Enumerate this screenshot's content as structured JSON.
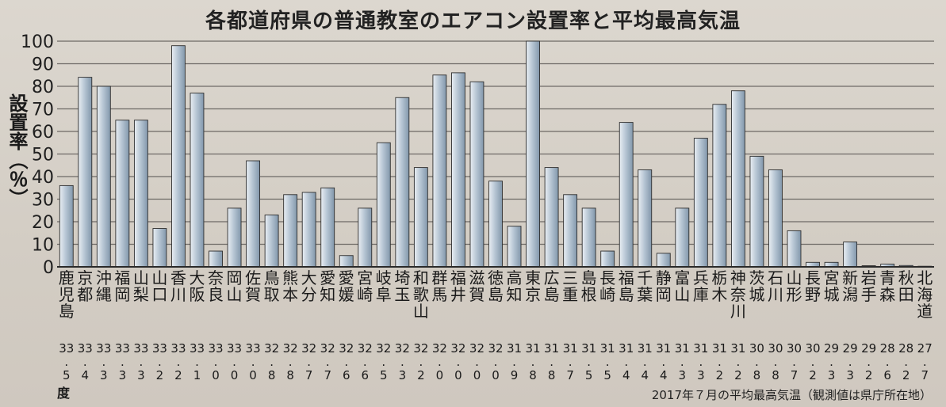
{
  "chart_data": {
    "type": "bar",
    "title": "各都道府県の普通教室のエアコン設置率と平均最高気温",
    "ylabel": "設置率（％）",
    "ylim": [
      0,
      100
    ],
    "yticks": [
      0,
      10,
      20,
      30,
      40,
      50,
      60,
      70,
      80,
      90,
      100
    ],
    "grid": true,
    "categories": [
      "鹿児島",
      "京都",
      "沖縄",
      "福岡",
      "山梨",
      "山口",
      "香川",
      "大阪",
      "奈良",
      "岡山",
      "佐賀",
      "鳥取",
      "熊本",
      "大分",
      "愛知",
      "愛媛",
      "宮崎",
      "岐阜",
      "埼玉",
      "和歌山",
      "群馬",
      "福井",
      "滋賀",
      "徳島",
      "高知",
      "東京",
      "広島",
      "三重",
      "島根",
      "長崎",
      "福島",
      "千葉",
      "静岡",
      "富山",
      "兵庫",
      "栃木",
      "神奈川",
      "茨城",
      "石川",
      "山形",
      "長野",
      "宮城",
      "新潟",
      "岩手",
      "青森",
      "秋田",
      "北海道"
    ],
    "values": [
      36,
      84,
      80,
      65,
      65,
      17,
      98,
      77,
      7,
      26,
      47,
      23,
      32,
      33,
      35,
      5,
      26,
      55,
      75,
      44,
      85,
      86,
      82,
      38,
      18,
      100,
      44,
      32,
      26,
      7,
      64,
      43,
      6,
      26,
      57,
      72,
      78,
      49,
      43,
      16,
      2,
      2,
      11,
      0.5,
      1.2,
      0.6,
      0.2
    ],
    "temperatures": [
      "33.5",
      "33.4",
      "33.3",
      "33.3",
      "33.3",
      "33.2",
      "33.2",
      "33.1",
      "33.0",
      "33.0",
      "33.0",
      "32.8",
      "32.8",
      "32.7",
      "32.7",
      "32.6",
      "32.6",
      "32.5",
      "32.3",
      "32.2",
      "32.0",
      "32.0",
      "32.0",
      "32.0",
      "31.9",
      "31.8",
      "31.8",
      "31.7",
      "31.5",
      "31.5",
      "31.4",
      "31.4",
      "31.4",
      "31.3",
      "31.3",
      "31.2",
      "31.2",
      "30.8",
      "30.8",
      "30.7",
      "30.2",
      "29.3",
      "29.3",
      "29.2",
      "28.6",
      "28.2",
      "27.7"
    ],
    "temp_unit": "度",
    "footnote": "2017年７月の平均最高気温（観測値は県庁所在地）"
  },
  "colors": {
    "bar_left": "#e9eef3",
    "bar_mid": "#b7c6d4",
    "bar_right": "#8297ab",
    "grid": "#6e6a66",
    "axis": "#2a2a2a"
  }
}
